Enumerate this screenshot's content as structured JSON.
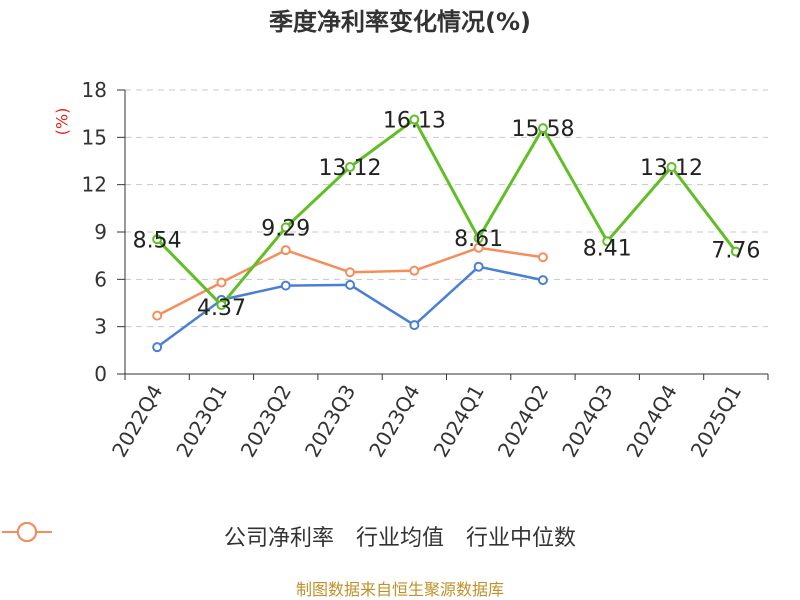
{
  "chart_data": {
    "type": "line",
    "title": "季度净利率变化情况(%)",
    "ylabel": "(%)",
    "xlabel": "",
    "categories": [
      "2022Q4",
      "2023Q1",
      "2023Q2",
      "2023Q3",
      "2023Q4",
      "2024Q1",
      "2024Q2",
      "2024Q3",
      "2024Q4",
      "2025Q1"
    ],
    "y_ticks": [
      0,
      3,
      6,
      9,
      12,
      15,
      18
    ],
    "ylim": [
      0,
      18
    ],
    "grid": true,
    "legend_position": "bottom",
    "series": [
      {
        "name": "公司净利率",
        "color": "#5fbf24",
        "values": [
          8.54,
          4.37,
          9.29,
          13.12,
          16.13,
          8.61,
          15.58,
          8.41,
          13.12,
          7.76
        ],
        "labels": [
          "8.54",
          "4.37",
          "9.29",
          "13.12",
          "16.13",
          "8.61",
          "15.58",
          "8.41",
          "13.12",
          "7.76"
        ]
      },
      {
        "name": "行业均值",
        "color": "#4a7fd6",
        "values": [
          1.7,
          4.7,
          5.6,
          5.65,
          3.1,
          6.8,
          5.95,
          null,
          null,
          null
        ]
      },
      {
        "name": "行业中位数",
        "color": "#f58e5a",
        "values": [
          3.7,
          5.8,
          7.85,
          6.45,
          6.55,
          8.0,
          7.4,
          null,
          null,
          null
        ]
      }
    ]
  },
  "footer": {
    "source": "制图数据来自恒生聚源数据库"
  }
}
